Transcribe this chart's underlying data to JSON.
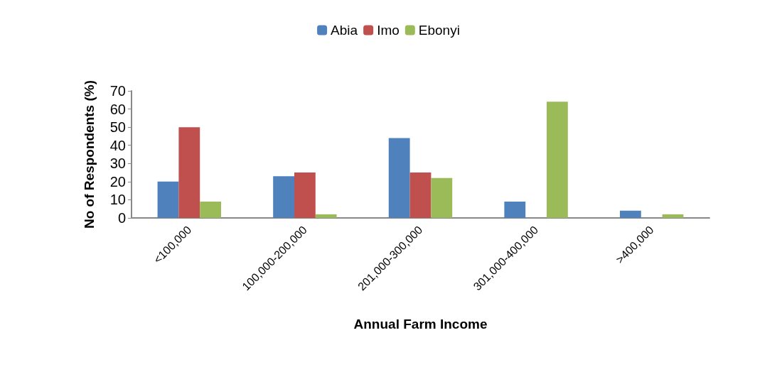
{
  "chart_data": {
    "type": "bar",
    "xlabel": "Annual Farm Income",
    "ylabel": "No of Respondents (%)",
    "categories": [
      "<100,000",
      "100,000-200,000",
      "201,000-300,000",
      "301,000-400,000",
      ">400,000"
    ],
    "series": [
      {
        "name": "Abia",
        "color": "#4f81bd",
        "values": [
          20,
          23,
          44,
          9,
          4
        ]
      },
      {
        "name": "Imo",
        "color": "#c0504d",
        "values": [
          50,
          25,
          25,
          0,
          0
        ]
      },
      {
        "name": "Ebonyi",
        "color": "#9bbb59",
        "values": [
          9,
          2,
          22,
          64,
          2
        ]
      }
    ],
    "ylim": [
      0,
      70
    ],
    "yticks": [
      0,
      10,
      20,
      30,
      40,
      50,
      60,
      70
    ],
    "grid": false,
    "legend": "top"
  }
}
